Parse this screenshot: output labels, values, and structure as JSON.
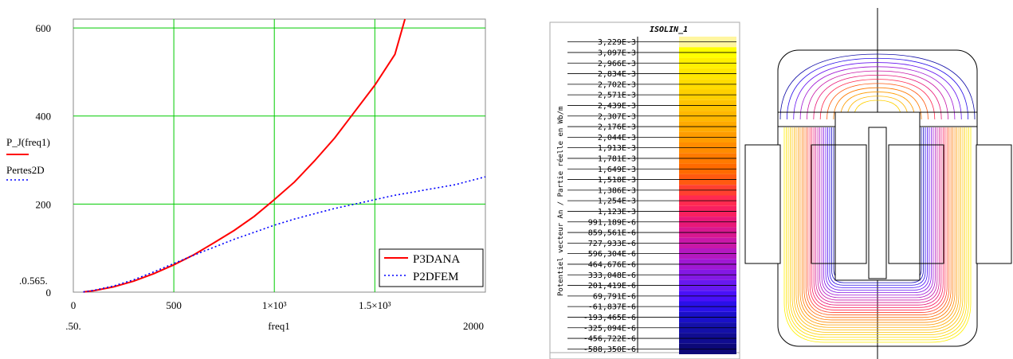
{
  "chart_data": [
    {
      "type": "line",
      "x_axis_label": "freq1",
      "y_axis_labels": [
        "P_J(freq1)",
        "Pertes2D"
      ],
      "x_range": [
        0,
        2050
      ],
      "y_range": [
        0,
        620
      ],
      "x_ticks": [
        "0",
        "500",
        "1×10³",
        "1.5×10³"
      ],
      "x_tick_values": [
        0,
        500,
        1000,
        1500
      ],
      "x_limit_labels": [
        ".50.",
        "2000"
      ],
      "y_ticks": [
        "0",
        "200",
        "400",
        "600"
      ],
      "y_tick_values": [
        0,
        200,
        400,
        600
      ],
      "y_limit_label": ".0.565.",
      "grid": true,
      "grid_color": "#00cc00",
      "legend_placement": "bottom-right",
      "series": [
        {
          "name": "P3DANA",
          "color": "#ff0000",
          "style": "solid",
          "x": [
            50,
            100,
            200,
            300,
            400,
            500,
            600,
            700,
            800,
            900,
            1000,
            1100,
            1200,
            1300,
            1400,
            1500,
            1600,
            1650
          ],
          "y": [
            0.565,
            3,
            12,
            25,
            42,
            62,
            85,
            112,
            140,
            172,
            210,
            250,
            298,
            350,
            410,
            470,
            540,
            620
          ]
        },
        {
          "name": "P2DFEM",
          "color": "#0000ff",
          "style": "dotted",
          "x": [
            50,
            100,
            200,
            300,
            400,
            500,
            600,
            700,
            800,
            900,
            1000,
            1100,
            1200,
            1300,
            1400,
            1500,
            1600,
            1700,
            1800,
            1900,
            2050
          ],
          "y": [
            0.565,
            4,
            14,
            28,
            46,
            65,
            84,
            102,
            120,
            136,
            152,
            166,
            178,
            190,
            200,
            210,
            220,
            228,
            236,
            244,
            262
          ]
        }
      ]
    },
    {
      "type": "table",
      "title": "ISOLIN_1",
      "axis_label": "Potentiel vecteur An / Partie réelle en Wb/m",
      "levels": [
        "3,229E-3",
        "3,097E-3",
        "2,966E-3",
        "2,834E-3",
        "2,702E-3",
        "2,571E-3",
        "2,439E-3",
        "2,307E-3",
        "2,176E-3",
        "2,044E-3",
        "1,913E-3",
        "1,781E-3",
        "1,649E-3",
        "1,518E-3",
        "1,386E-3",
        "1,254E-3",
        "1,123E-3",
        "991,189E-6",
        "859,561E-6",
        "727,933E-6",
        "596,304E-6",
        "464,676E-6",
        "333,048E-6",
        "201,419E-6",
        "69,791E-6",
        "-61,837E-6",
        "-193,465E-6",
        "-325,094E-6",
        "-456,722E-6",
        "-588,350E-6"
      ],
      "colors": [
        "#fff6a0",
        "#ffff00",
        "#fff000",
        "#ffe600",
        "#ffdc00",
        "#ffd000",
        "#ffc400",
        "#ffb800",
        "#ffaa00",
        "#ff9c00",
        "#ff8c00",
        "#ff7a00",
        "#ff6a00",
        "#ff5a10",
        "#ff4030",
        "#ff2a50",
        "#f82060",
        "#e81878",
        "#d81890",
        "#c818a8",
        "#b418c0",
        "#a018d4",
        "#8418e4",
        "#6818f0",
        "#4a10f8",
        "#2a10e8",
        "#1a10c8",
        "#1410a8",
        "#100c90",
        "#0c0878"
      ]
    }
  ]
}
